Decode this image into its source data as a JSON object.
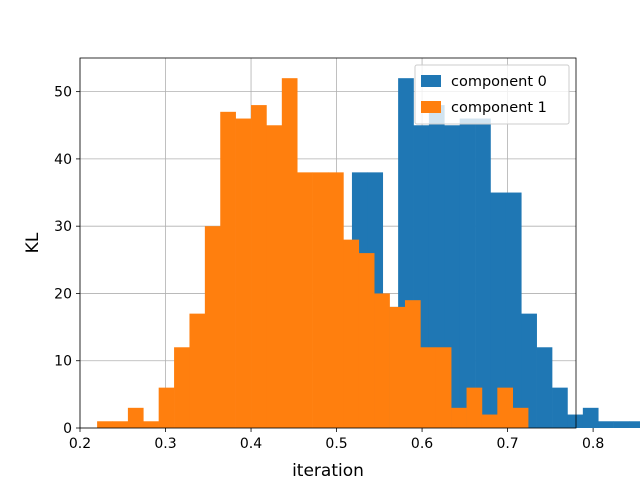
{
  "chart_data": {
    "type": "bar",
    "title": "",
    "xlabel": "iteration",
    "ylabel": "KL",
    "xlim": [
      0.2,
      0.78
    ],
    "ylim": [
      0,
      55
    ],
    "xticks": [
      0.2,
      0.3,
      0.4,
      0.5,
      0.6,
      0.7,
      0.8
    ],
    "xtick_labels": [
      "0.2",
      "0.3",
      "0.4",
      "0.5",
      "0.6",
      "0.7",
      "0.8"
    ],
    "yticks": [
      0,
      10,
      20,
      30,
      40,
      50
    ],
    "ytick_labels": [
      "0",
      "10",
      "20",
      "30",
      "40",
      "50"
    ],
    "grid": true,
    "legend": {
      "position": "top-right"
    },
    "series": [
      {
        "name": "component 0",
        "color": "#1f77b4",
        "bin_start": 0.32,
        "bin_width": 0.018,
        "values": [
          0,
          0,
          0,
          0,
          0,
          0,
          0,
          0,
          0,
          0,
          0,
          38,
          38,
          18,
          52,
          45,
          48,
          45,
          46,
          46,
          35,
          35,
          17,
          12,
          6,
          2,
          3,
          1,
          1,
          1
        ]
      },
      {
        "name": "component 1",
        "color": "#ff7f0e",
        "bin_start": 0.22,
        "bin_width": 0.018,
        "values": [
          1,
          1,
          3,
          1,
          6,
          12,
          17,
          30,
          47,
          46,
          48,
          45,
          52,
          38,
          38,
          38,
          28,
          26,
          20,
          18,
          19,
          12,
          12,
          3,
          6,
          2,
          6,
          3
        ]
      }
    ]
  }
}
